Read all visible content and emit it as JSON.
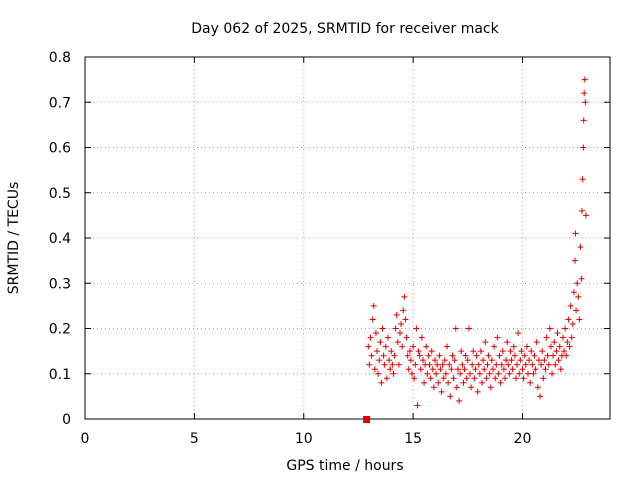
{
  "chart_data": {
    "type": "scatter",
    "title": "Day 062 of 2025, SRMTID for receiver mack",
    "xlabel": "GPS time / hours",
    "ylabel": "SRMTID / TECUs",
    "xlim": [
      0,
      24
    ],
    "ylim": [
      0,
      0.8
    ],
    "xticks": [
      0,
      5,
      10,
      15,
      20
    ],
    "yticks": [
      0,
      0.1,
      0.2,
      0.3,
      0.4,
      0.5,
      0.6,
      0.7,
      0.8
    ],
    "xtick_labels": [
      "0",
      "5",
      "10",
      "15",
      "20"
    ],
    "ytick_labels": [
      "0",
      "0.1",
      "0.2",
      "0.3",
      "0.4",
      "0.5",
      "0.6",
      "0.7",
      "0.8"
    ],
    "grid": true,
    "marker": "plus",
    "color": "#e00000",
    "square_marker": {
      "x": 12.85,
      "y": 0.0
    },
    "series": [
      {
        "name": "SRMTID",
        "points": [
          [
            12.95,
            0.16
          ],
          [
            13.0,
            0.12
          ],
          [
            13.05,
            0.18
          ],
          [
            13.1,
            0.14
          ],
          [
            13.15,
            0.22
          ],
          [
            13.2,
            0.25
          ],
          [
            13.25,
            0.11
          ],
          [
            13.3,
            0.19
          ],
          [
            13.35,
            0.15
          ],
          [
            13.4,
            0.1
          ],
          [
            13.45,
            0.13
          ],
          [
            13.5,
            0.17
          ],
          [
            13.55,
            0.08
          ],
          [
            13.6,
            0.2
          ],
          [
            13.65,
            0.14
          ],
          [
            13.7,
            0.12
          ],
          [
            13.75,
            0.16
          ],
          [
            13.8,
            0.09
          ],
          [
            13.85,
            0.18
          ],
          [
            13.9,
            0.13
          ],
          [
            13.95,
            0.11
          ],
          [
            14.0,
            0.15
          ],
          [
            14.05,
            0.12
          ],
          [
            14.1,
            0.1
          ],
          [
            14.15,
            0.14
          ],
          [
            14.2,
            0.2
          ],
          [
            14.25,
            0.23
          ],
          [
            14.3,
            0.17
          ],
          [
            14.35,
            0.12
          ],
          [
            14.4,
            0.19
          ],
          [
            14.45,
            0.21
          ],
          [
            14.5,
            0.16
          ],
          [
            14.55,
            0.24
          ],
          [
            14.6,
            0.27
          ],
          [
            14.65,
            0.22
          ],
          [
            14.7,
            0.18
          ],
          [
            14.75,
            0.14
          ],
          [
            14.8,
            0.11
          ],
          [
            14.85,
            0.15
          ],
          [
            14.9,
            0.13
          ],
          [
            14.95,
            0.1
          ],
          [
            15.0,
            0.16
          ],
          [
            15.05,
            0.09
          ],
          [
            15.1,
            0.12
          ],
          [
            15.15,
            0.2
          ],
          [
            15.2,
            0.03
          ],
          [
            15.25,
            0.15
          ],
          [
            15.3,
            0.14
          ],
          [
            15.35,
            0.11
          ],
          [
            15.4,
            0.18
          ],
          [
            15.45,
            0.13
          ],
          [
            15.5,
            0.08
          ],
          [
            15.55,
            0.12
          ],
          [
            15.6,
            0.16
          ],
          [
            15.65,
            0.1
          ],
          [
            15.7,
            0.14
          ],
          [
            15.75,
            0.12
          ],
          [
            15.8,
            0.09
          ],
          [
            15.85,
            0.15
          ],
          [
            15.9,
            0.11
          ],
          [
            15.95,
            0.07
          ],
          [
            16.0,
            0.13
          ],
          [
            16.05,
            0.1
          ],
          [
            16.1,
            0.12
          ],
          [
            16.15,
            0.08
          ],
          [
            16.2,
            0.14
          ],
          [
            16.25,
            0.11
          ],
          [
            16.3,
            0.06
          ],
          [
            16.35,
            0.12
          ],
          [
            16.4,
            0.09
          ],
          [
            16.45,
            0.13
          ],
          [
            16.5,
            0.1
          ],
          [
            16.55,
            0.16
          ],
          [
            16.6,
            0.08
          ],
          [
            16.65,
            0.12
          ],
          [
            16.7,
            0.05
          ],
          [
            16.75,
            0.11
          ],
          [
            16.8,
            0.14
          ],
          [
            16.85,
            0.09
          ],
          [
            16.9,
            0.13
          ],
          [
            16.95,
            0.2
          ],
          [
            17.0,
            0.07
          ],
          [
            17.05,
            0.11
          ],
          [
            17.1,
            0.04
          ],
          [
            17.15,
            0.1
          ],
          [
            17.2,
            0.15
          ],
          [
            17.25,
            0.12
          ],
          [
            17.3,
            0.08
          ],
          [
            17.35,
            0.11
          ],
          [
            17.4,
            0.14
          ],
          [
            17.45,
            0.09
          ],
          [
            17.5,
            0.13
          ],
          [
            17.55,
            0.2
          ],
          [
            17.6,
            0.1
          ],
          [
            17.65,
            0.07
          ],
          [
            17.7,
            0.12
          ],
          [
            17.75,
            0.15
          ],
          [
            17.8,
            0.09
          ],
          [
            17.85,
            0.11
          ],
          [
            17.9,
            0.14
          ],
          [
            17.95,
            0.06
          ],
          [
            18.0,
            0.12
          ],
          [
            18.05,
            0.1
          ],
          [
            18.1,
            0.15
          ],
          [
            18.15,
            0.08
          ],
          [
            18.2,
            0.13
          ],
          [
            18.25,
            0.11
          ],
          [
            18.3,
            0.17
          ],
          [
            18.35,
            0.09
          ],
          [
            18.4,
            0.12
          ],
          [
            18.45,
            0.14
          ],
          [
            18.5,
            0.1
          ],
          [
            18.55,
            0.07
          ],
          [
            18.6,
            0.13
          ],
          [
            18.65,
            0.11
          ],
          [
            18.7,
            0.16
          ],
          [
            18.75,
            0.09
          ],
          [
            18.8,
            0.12
          ],
          [
            18.85,
            0.18
          ],
          [
            18.9,
            0.1
          ],
          [
            18.95,
            0.14
          ],
          [
            19.0,
            0.08
          ],
          [
            19.05,
            0.12
          ],
          [
            19.1,
            0.15
          ],
          [
            19.15,
            0.11
          ],
          [
            19.2,
            0.09
          ],
          [
            19.25,
            0.13
          ],
          [
            19.3,
            0.17
          ],
          [
            19.35,
            0.12
          ],
          [
            19.4,
            0.1
          ],
          [
            19.45,
            0.15
          ],
          [
            19.5,
            0.13
          ],
          [
            19.55,
            0.11
          ],
          [
            19.6,
            0.16
          ],
          [
            19.65,
            0.14
          ],
          [
            19.7,
            0.09
          ],
          [
            19.75,
            0.12
          ],
          [
            19.8,
            0.19
          ],
          [
            19.85,
            0.1
          ],
          [
            19.9,
            0.13
          ],
          [
            19.95,
            0.15
          ],
          [
            20.0,
            0.11
          ],
          [
            20.05,
            0.09
          ],
          [
            20.1,
            0.14
          ],
          [
            20.15,
            0.12
          ],
          [
            20.2,
            0.16
          ],
          [
            20.25,
            0.1
          ],
          [
            20.3,
            0.13
          ],
          [
            20.35,
            0.08
          ],
          [
            20.4,
            0.15
          ],
          [
            20.45,
            0.12
          ],
          [
            20.5,
            0.1
          ],
          [
            20.55,
            0.14
          ],
          [
            20.6,
            0.11
          ],
          [
            20.65,
            0.17
          ],
          [
            20.7,
            0.07
          ],
          [
            20.75,
            0.13
          ],
          [
            20.8,
            0.05
          ],
          [
            20.85,
            0.12
          ],
          [
            20.9,
            0.15
          ],
          [
            20.95,
            0.09
          ],
          [
            21.0,
            0.13
          ],
          [
            21.05,
            0.11
          ],
          [
            21.1,
            0.18
          ],
          [
            21.15,
            0.14
          ],
          [
            21.2,
            0.12
          ],
          [
            21.25,
            0.2
          ],
          [
            21.3,
            0.16
          ],
          [
            21.35,
            0.1
          ],
          [
            21.4,
            0.14
          ],
          [
            21.45,
            0.17
          ],
          [
            21.5,
            0.12
          ],
          [
            21.55,
            0.15
          ],
          [
            21.6,
            0.19
          ],
          [
            21.65,
            0.13
          ],
          [
            21.7,
            0.16
          ],
          [
            21.75,
            0.11
          ],
          [
            21.8,
            0.14
          ],
          [
            21.85,
            0.18
          ],
          [
            21.9,
            0.15
          ],
          [
            21.95,
            0.2
          ],
          [
            22.0,
            0.14
          ],
          [
            22.05,
            0.17
          ],
          [
            22.1,
            0.22
          ],
          [
            22.15,
            0.16
          ],
          [
            22.2,
            0.25
          ],
          [
            22.25,
            0.18
          ],
          [
            22.3,
            0.21
          ],
          [
            22.35,
            0.28
          ],
          [
            22.4,
            0.35
          ],
          [
            22.42,
            0.41
          ],
          [
            22.45,
            0.24
          ],
          [
            22.5,
            0.3
          ],
          [
            22.55,
            0.27
          ],
          [
            22.6,
            0.22
          ],
          [
            22.65,
            0.38
          ],
          [
            22.7,
            0.31
          ],
          [
            22.72,
            0.46
          ],
          [
            22.75,
            0.53
          ],
          [
            22.78,
            0.6
          ],
          [
            22.8,
            0.66
          ],
          [
            22.82,
            0.72
          ],
          [
            22.85,
            0.75
          ],
          [
            22.87,
            0.7
          ],
          [
            22.9,
            0.45
          ]
        ]
      }
    ]
  }
}
